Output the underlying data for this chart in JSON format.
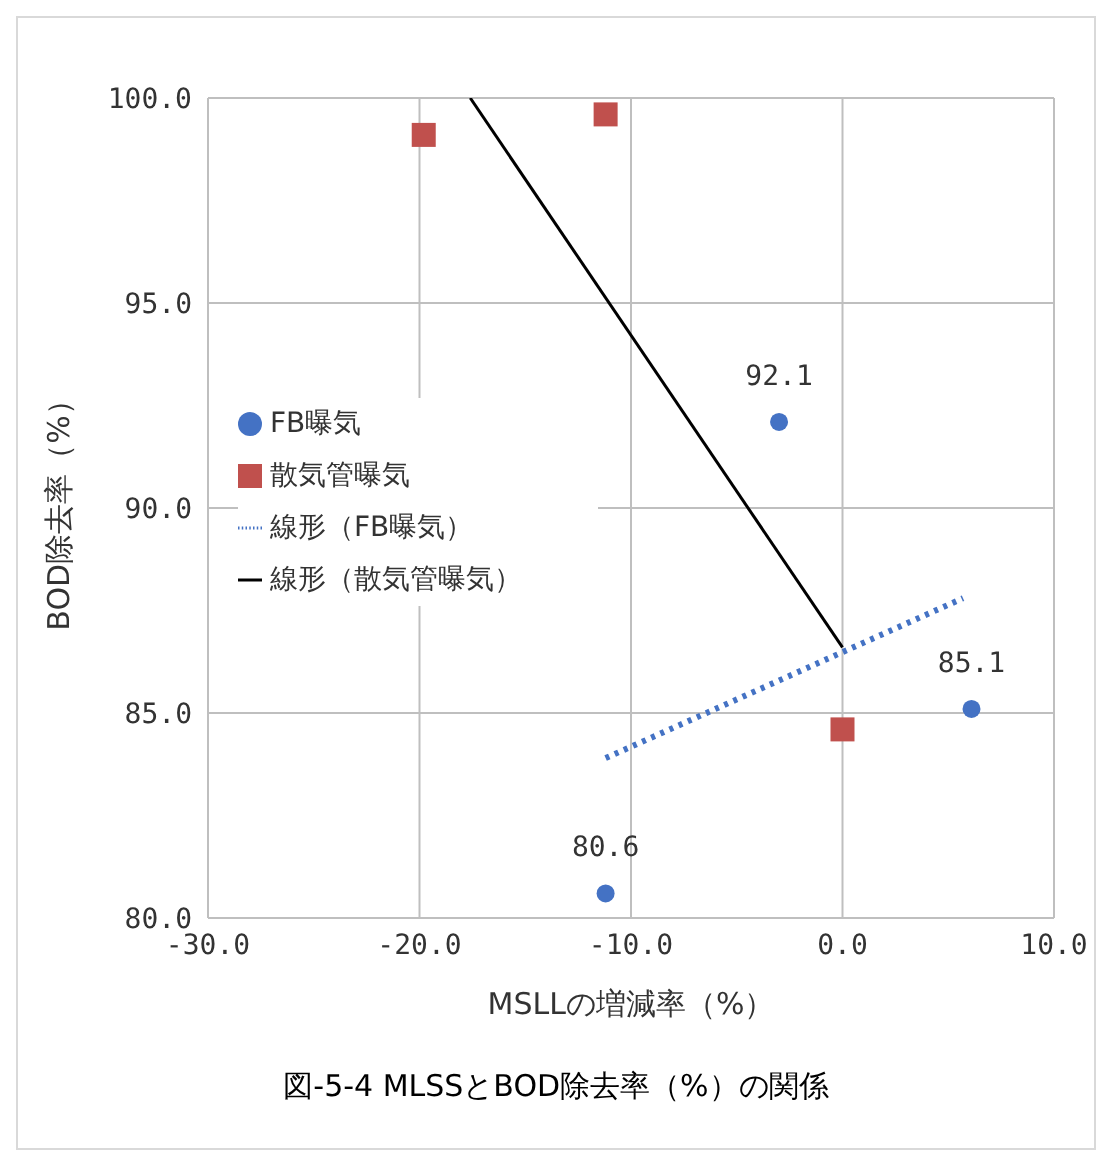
{
  "chart_data": {
    "type": "scatter",
    "xlabel": "MSLLの増減率（%）",
    "ylabel": "BOD除去率（%）",
    "annotations": [
      "図-5-4 MLSSとBOD除去率（%）の関係"
    ],
    "xlim": [
      -30,
      10
    ],
    "xticks": [
      {
        "value": -30,
        "label": "-30.0"
      },
      {
        "value": -20,
        "label": "-20.0"
      },
      {
        "value": -10,
        "label": "-10.0"
      },
      {
        "value": 0,
        "label": "0.0"
      },
      {
        "value": 10,
        "label": "10.0"
      }
    ],
    "ylim": [
      80,
      100
    ],
    "yticks": [
      {
        "value": 80,
        "label": "80.0"
      },
      {
        "value": 85,
        "label": "85.0"
      },
      {
        "value": 90,
        "label": "90.0"
      },
      {
        "value": 95,
        "label": "95.0"
      },
      {
        "value": 100,
        "label": "100.0"
      }
    ],
    "grid": true,
    "legend": "left",
    "series": [
      {
        "name": "FB曝気",
        "color": "#4472c4",
        "marker": "circle",
        "x": [
          -11.2,
          -3.0,
          6.1
        ],
        "values": [
          80.6,
          92.1,
          85.1
        ],
        "value_labels": [
          "80.6",
          "92.1",
          "85.1"
        ]
      },
      {
        "name": "散気管曝気",
        "color": "#c0504d",
        "marker": "square",
        "x": [
          -19.8,
          -11.2,
          0.0
        ],
        "values": [
          99.1,
          99.6,
          84.6
        ]
      },
      {
        "name": "線形（FB曝気）",
        "type": "line",
        "color": "#4472c4",
        "marker": "none",
        "line_style": "dotted",
        "x": [
          -11.2,
          5.7
        ],
        "values": [
          83.9,
          87.8
        ]
      },
      {
        "name": "線形（散気管曝気）",
        "type": "line",
        "color": "#000000",
        "marker": "none",
        "line_style": "solid",
        "x": [
          -17.6,
          0.0
        ],
        "values": [
          100,
          86.6
        ]
      }
    ]
  }
}
